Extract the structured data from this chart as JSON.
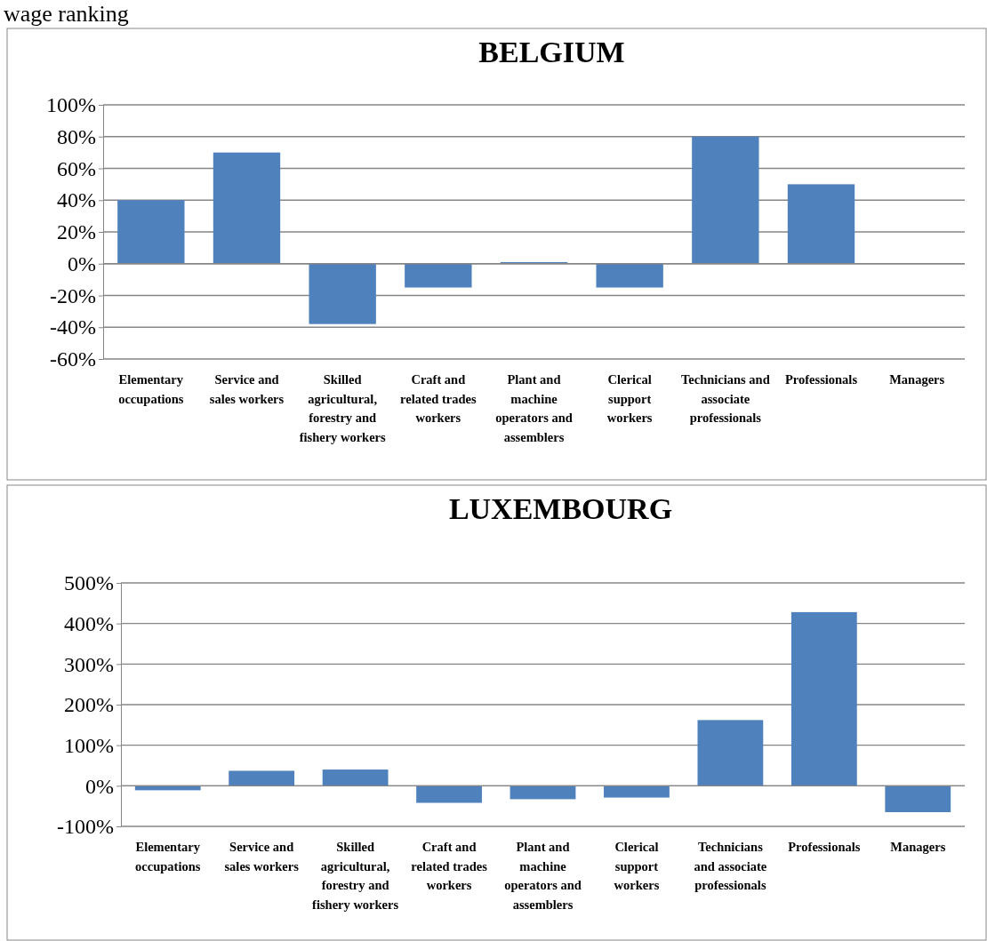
{
  "chart_data": [
    {
      "type": "bar",
      "title": "BELGIUM",
      "annotations": [
        "wage ranking"
      ],
      "categories": [
        "Elementary occupations",
        "Service and sales workers",
        "Skilled agricultural, forestry and fishery workers",
        "Craft and related trades workers",
        "Plant and machine operators and assemblers",
        "Clerical support workers",
        "Technicians and associate professionals",
        "Professionals",
        "Managers"
      ],
      "values": [
        40,
        70,
        -38,
        -15,
        1,
        -15,
        80,
        50,
        0
      ],
      "color": "#4f81bd",
      "ylim": [
        -60,
        100
      ],
      "yticks": [
        {
          "value": -60,
          "label": "-60%"
        },
        {
          "value": -40,
          "label": "-40%"
        },
        {
          "value": -20,
          "label": "-20%"
        },
        {
          "value": 0,
          "label": "0%"
        },
        {
          "value": 20,
          "label": "20%"
        },
        {
          "value": 40,
          "label": "40%"
        },
        {
          "value": 60,
          "label": "60%"
        },
        {
          "value": 80,
          "label": "80%"
        },
        {
          "value": 100,
          "label": "100%"
        }
      ],
      "grid": "y"
    },
    {
      "type": "bar",
      "title": "LUXEMBOURG",
      "categories": [
        "Elementary occupations",
        "Service and sales workers",
        "Skilled agricultural, forestry and fishery workers",
        "Craft and related trades workers",
        "Plant and machine operators and assemblers",
        "Clerical support workers",
        "Technicians and associate professionals",
        "Professionals",
        "Managers"
      ],
      "values": [
        -11,
        37,
        40,
        -42,
        -33,
        -29,
        162,
        428,
        -65
      ],
      "color": "#4f81bd",
      "ylim": [
        -100,
        500
      ],
      "yticks": [
        {
          "value": -100,
          "label": "-100%"
        },
        {
          "value": 0,
          "label": "0%"
        },
        {
          "value": 100,
          "label": "100%"
        },
        {
          "value": 200,
          "label": "200%"
        },
        {
          "value": 300,
          "label": "300%"
        },
        {
          "value": 400,
          "label": "400%"
        },
        {
          "value": 500,
          "label": "500%"
        }
      ],
      "grid": "y"
    }
  ]
}
